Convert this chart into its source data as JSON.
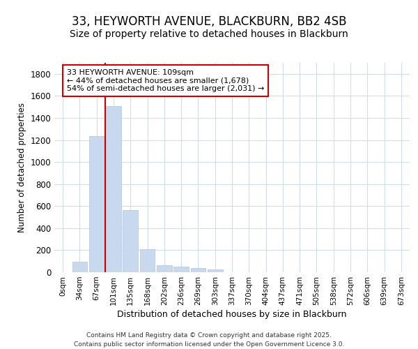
{
  "title1": "33, HEYWORTH AVENUE, BLACKBURN, BB2 4SB",
  "title2": "Size of property relative to detached houses in Blackburn",
  "xlabel": "Distribution of detached houses by size in Blackburn",
  "ylabel": "Number of detached properties",
  "categories": [
    "0sqm",
    "34sqm",
    "67sqm",
    "101sqm",
    "135sqm",
    "168sqm",
    "202sqm",
    "236sqm",
    "269sqm",
    "303sqm",
    "337sqm",
    "370sqm",
    "404sqm",
    "437sqm",
    "471sqm",
    "505sqm",
    "538sqm",
    "572sqm",
    "606sqm",
    "639sqm",
    "673sqm"
  ],
  "values": [
    0,
    95,
    1235,
    1510,
    565,
    210,
    65,
    48,
    35,
    25,
    0,
    0,
    0,
    0,
    0,
    0,
    0,
    0,
    0,
    0,
    0
  ],
  "bar_color": "#c8d8ed",
  "bar_edge_color": "#aec4df",
  "red_line_index": 3,
  "red_line_label": "33 HEYWORTH AVENUE: 109sqm",
  "annotation_line2": "← 44% of detached houses are smaller (1,678)",
  "annotation_line3": "54% of semi-detached houses are larger (2,031) →",
  "annotation_box_color": "#ffffff",
  "annotation_box_edge": "#cc0000",
  "ylim": [
    0,
    1900
  ],
  "yticks": [
    0,
    200,
    400,
    600,
    800,
    1000,
    1200,
    1400,
    1600,
    1800
  ],
  "background_color": "#ffffff",
  "plot_background": "#ffffff",
  "grid_color": "#d0dcec",
  "footer1": "Contains HM Land Registry data © Crown copyright and database right 2025.",
  "footer2": "Contains public sector information licensed under the Open Government Licence 3.0.",
  "title_fontsize": 12,
  "subtitle_fontsize": 10
}
